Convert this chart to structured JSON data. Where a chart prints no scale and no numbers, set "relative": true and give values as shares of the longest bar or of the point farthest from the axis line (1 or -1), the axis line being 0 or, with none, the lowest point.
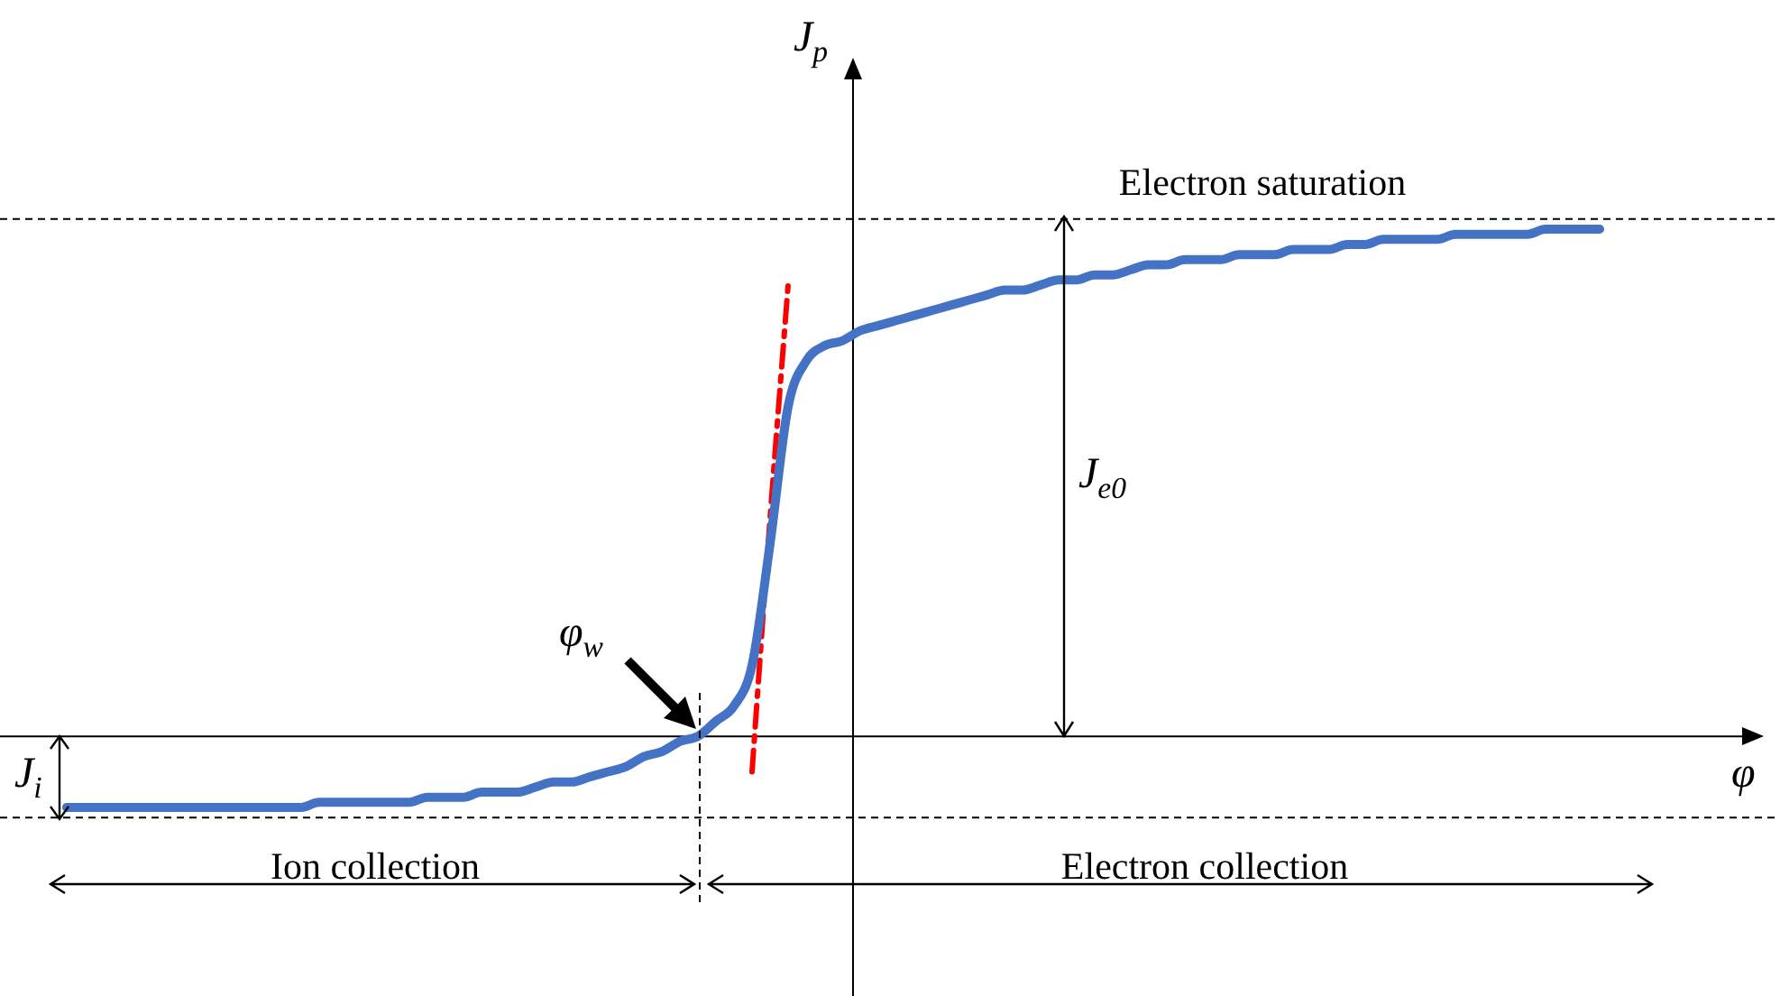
{
  "chart_data": {
    "type": "line",
    "relative": true,
    "tick_labels": false,
    "xlabel": "φ",
    "ylabel": "J$_{p}$",
    "categories": [
      null,
      null,
      null,
      null,
      null,
      null,
      null,
      null,
      null,
      null,
      null,
      null,
      null,
      null,
      null,
      null,
      null,
      null,
      null,
      null,
      null,
      null,
      null,
      null,
      null,
      null,
      null,
      null,
      null,
      null,
      null,
      null,
      null,
      null,
      null,
      null,
      null,
      null,
      null,
      null,
      null,
      null,
      null,
      null,
      null,
      null,
      null,
      null,
      null,
      null,
      null,
      null,
      null,
      null,
      null,
      null,
      null,
      null,
      null,
      null,
      null,
      null,
      null,
      null,
      null,
      null,
      null,
      null,
      null,
      null,
      null,
      null,
      null,
      null,
      null,
      null,
      null,
      null,
      null,
      null,
      null,
      null,
      null,
      null,
      null,
      null
    ],
    "series": [
      {
        "color": "#4472c4",
        "values": [
          -0.14,
          -0.14,
          -0.14,
          -0.14,
          -0.14,
          -0.14,
          -0.14,
          -0.14,
          -0.14,
          -0.14,
          -0.14,
          -0.14,
          -0.14,
          -0.14,
          -0.13,
          -0.13,
          -0.13,
          -0.13,
          -0.13,
          -0.13,
          -0.12,
          -0.12,
          -0.12,
          -0.11,
          -0.11,
          -0.11,
          -0.1,
          -0.09,
          -0.09,
          -0.08,
          -0.07,
          -0.06,
          -0.04,
          -0.03,
          -0.01,
          0,
          0.03,
          0.06,
          0.14,
          0.38,
          0.65,
          0.74,
          0.77,
          0.78,
          0.8,
          0.81,
          0.82,
          0.83,
          0.84,
          0.85,
          0.86,
          0.87,
          0.88,
          0.88,
          0.89,
          0.9,
          0.9,
          0.91,
          0.91,
          0.92,
          0.93,
          0.93,
          0.94,
          0.94,
          0.94,
          0.95,
          0.95,
          0.95,
          0.96,
          0.96,
          0.96,
          0.97,
          0.97,
          0.98,
          0.98,
          0.98,
          0.98,
          0.99,
          0.99,
          0.99,
          0.99,
          0.99,
          1.0,
          1.0,
          1.0,
          1.0
        ]
      },
      {
        "color": "#ff0000",
        "line_style": "dashed",
        "values": [
          null,
          null,
          null,
          null,
          null,
          null,
          null,
          null,
          null,
          null,
          null,
          null,
          null,
          null,
          null,
          null,
          null,
          null,
          null,
          null,
          null,
          null,
          null,
          null,
          null,
          null,
          null,
          null,
          null,
          null,
          null,
          null,
          null,
          null,
          null,
          null,
          null,
          null,
          -0.07,
          0.43,
          0.89,
          null,
          null,
          null,
          null,
          null,
          null,
          null,
          null,
          null,
          null,
          null,
          null,
          null,
          null,
          null,
          null,
          null,
          null,
          null,
          null,
          null,
          null,
          null,
          null,
          null,
          null,
          null,
          null,
          null,
          null,
          null,
          null,
          null,
          null,
          null,
          null,
          null,
          null,
          null,
          null,
          null,
          null,
          null,
          null,
          null
        ]
      }
    ],
    "ref_lines": [
      {
        "axis": "y",
        "value": 1.02,
        "color": "#000000",
        "line_style": "dashed"
      },
      {
        "axis": "y",
        "value": -0.16,
        "color": "#000000",
        "line_style": "dashed"
      }
    ],
    "annotations": [
      "Electron saturation",
      "J$_{e0}$",
      "J$_{i}$",
      "φ$_{w}$",
      "Ion collection",
      "Electron collection"
    ]
  }
}
